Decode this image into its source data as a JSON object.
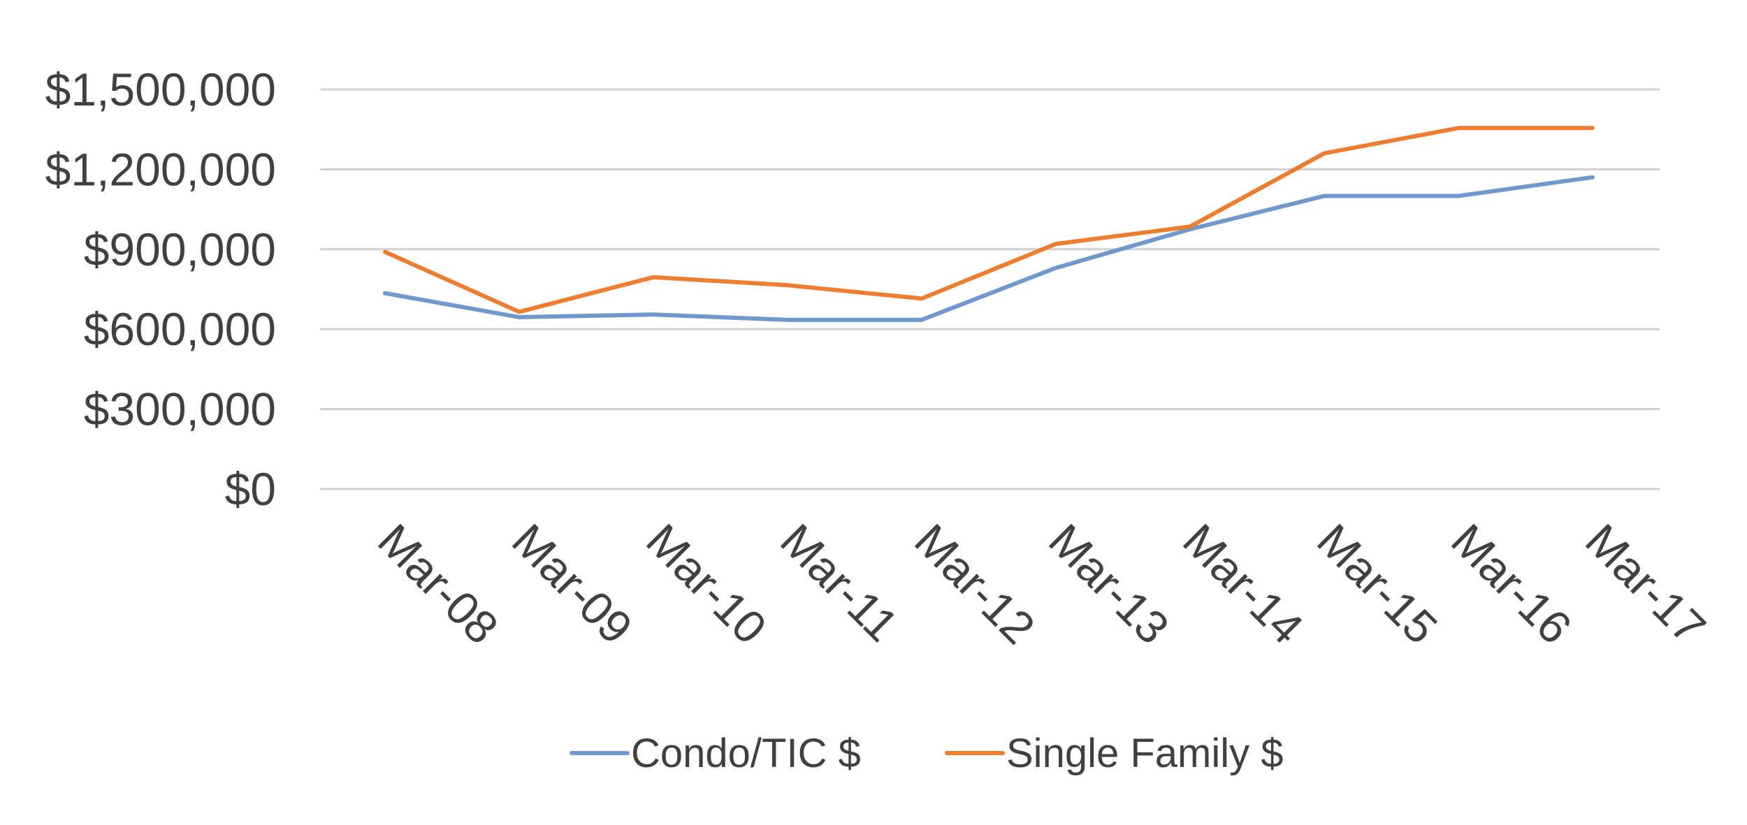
{
  "chart_data": {
    "type": "line",
    "title": "",
    "xlabel": "",
    "ylabel": "",
    "categories": [
      "Mar-08",
      "Mar-09",
      "Mar-10",
      "Mar-11",
      "Mar-12",
      "Mar-13",
      "Mar-14",
      "Mar-15",
      "Mar-16",
      "Mar-17"
    ],
    "y_ticks": [
      0,
      300000,
      600000,
      900000,
      1200000,
      1500000
    ],
    "y_tick_labels": [
      "$0",
      "$300,000",
      "$600,000",
      "$900,000",
      "$1,200,000",
      "$1,500,000"
    ],
    "ylim": [
      0,
      1500000
    ],
    "grid": true,
    "legend_position": "bottom",
    "series": [
      {
        "name": "Condo/TIC $",
        "color": "#7098cd",
        "values": [
          735000,
          645000,
          655000,
          635000,
          635000,
          830000,
          975000,
          1100000,
          1100000,
          1170000
        ]
      },
      {
        "name": "Single Family $",
        "color": "#ed7d31",
        "values": [
          890000,
          665000,
          795000,
          765000,
          715000,
          920000,
          985000,
          1260000,
          1355000,
          1355000
        ]
      }
    ]
  }
}
